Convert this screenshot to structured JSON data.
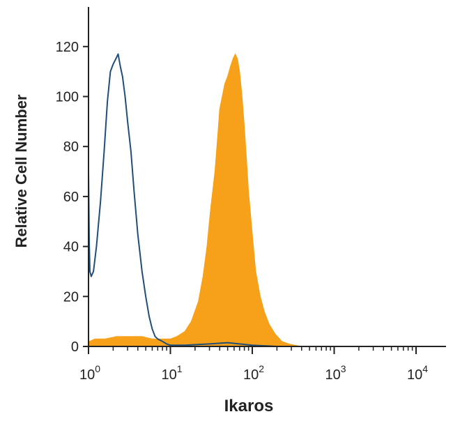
{
  "chart_data": {
    "type": "area",
    "title": "",
    "xlabel": "Ikaros",
    "ylabel": "Relative Cell Number",
    "x_scale": "log",
    "xlim": [
      1,
      10000
    ],
    "ylim": [
      0,
      135
    ],
    "grid": false,
    "legend": "none",
    "x_ticks": [
      {
        "value": 1,
        "base": "10",
        "exp": "0"
      },
      {
        "value": 10,
        "base": "10",
        "exp": "1"
      },
      {
        "value": 100,
        "base": "10",
        "exp": "2"
      },
      {
        "value": 1000,
        "base": "10",
        "exp": "3"
      },
      {
        "value": 10000,
        "base": "10",
        "exp": "4"
      }
    ],
    "y_ticks": [
      {
        "value": 0,
        "label": "0"
      },
      {
        "value": 20,
        "label": "20"
      },
      {
        "value": 40,
        "label": "40"
      },
      {
        "value": 60,
        "label": "60"
      },
      {
        "value": 80,
        "label": "80"
      },
      {
        "value": 100,
        "label": "100"
      },
      {
        "value": 120,
        "label": "120"
      }
    ],
    "series": [
      {
        "style": "filled",
        "color": "#f7a11a",
        "x": [
          1,
          1.02,
          1.2,
          1.6,
          2.2,
          3.2,
          4.5,
          6,
          8,
          10,
          12,
          15,
          18,
          22,
          25,
          28,
          31,
          35,
          38,
          40,
          43,
          46,
          50,
          54,
          58,
          62,
          66,
          70,
          75,
          80,
          85,
          90,
          100,
          110,
          125,
          140,
          160,
          190,
          230,
          280,
          330,
          400,
          1000,
          10000
        ],
        "y": [
          0,
          2,
          3,
          3,
          4,
          4,
          4,
          3,
          3,
          3,
          4,
          6,
          10,
          18,
          28,
          40,
          55,
          70,
          85,
          95,
          100,
          105,
          108,
          112,
          115,
          117,
          115,
          110,
          100,
          88,
          75,
          62,
          45,
          30,
          20,
          14,
          9,
          5,
          2,
          1,
          0.5,
          0,
          0,
          0
        ]
      },
      {
        "style": "line",
        "color": "#1f4e79",
        "x": [
          1,
          1.02,
          1.04,
          1.08,
          1.15,
          1.25,
          1.4,
          1.55,
          1.7,
          1.85,
          2,
          2.15,
          2.3,
          2.45,
          2.6,
          2.8,
          3.0,
          3.3,
          3.6,
          4.0,
          4.5,
          5,
          5.5,
          6,
          6.5,
          7,
          8,
          9,
          10,
          15,
          30,
          50,
          70,
          100,
          200,
          1000,
          10000
        ],
        "y": [
          70,
          42,
          30,
          28,
          30,
          40,
          58,
          78,
          98,
          110,
          113,
          115,
          117,
          112,
          108,
          100,
          90,
          78,
          62,
          45,
          30,
          20,
          12,
          7,
          4,
          3,
          2,
          1,
          0.5,
          0.5,
          1,
          1.5,
          1,
          0.5,
          0,
          0,
          0
        ]
      }
    ]
  }
}
